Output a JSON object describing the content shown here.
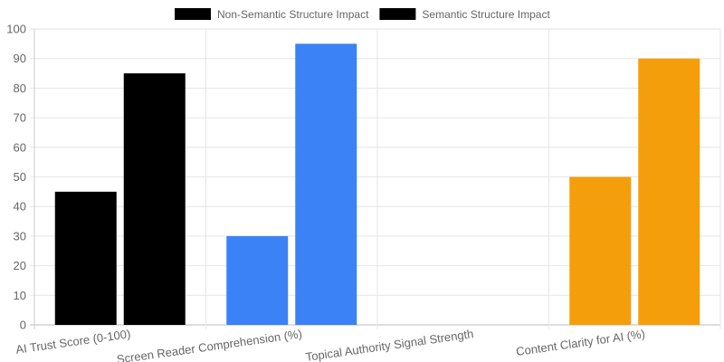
{
  "chart_data": {
    "type": "bar",
    "title": "",
    "xlabel": "",
    "ylabel": "",
    "ylim": [
      0,
      100
    ],
    "yticks": [
      0,
      10,
      20,
      30,
      40,
      50,
      60,
      70,
      80,
      90,
      100
    ],
    "grid": true,
    "legend_position": "top",
    "categories": [
      "AI Trust Score (0-100)",
      "Screen Reader Comprehension (%)",
      "Topical Authority Signal Strength",
      "Content Clarity for AI (%)"
    ],
    "series": [
      {
        "name": "Non-Semantic Structure Impact",
        "values": [
          45,
          30,
          0,
          50
        ]
      },
      {
        "name": "Semantic Structure Impact",
        "values": [
          85,
          95,
          0,
          90
        ]
      }
    ],
    "bar_colors": [
      "#000000",
      "#3b82f6",
      "#3b82f6",
      "#f59e0b"
    ],
    "legend_color": "#000000"
  }
}
